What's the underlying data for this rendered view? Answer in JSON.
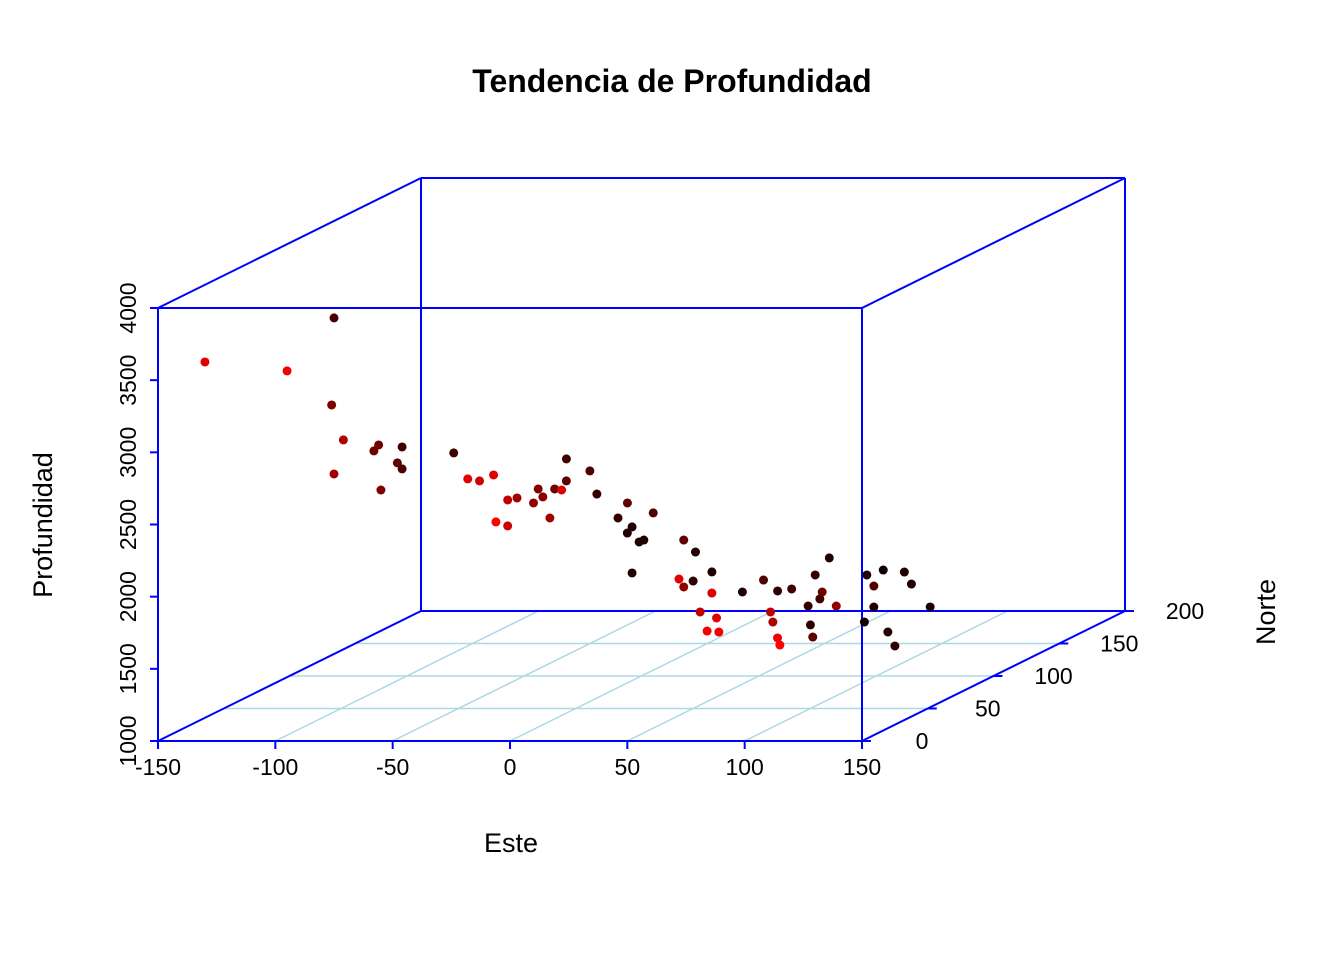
{
  "chart_data": {
    "type": "scatter3d",
    "title": "Tendencia de Profundidad",
    "xlabel": "Este",
    "ylabel": "Norte",
    "zlabel": "Profundidad",
    "xlim": [
      -150,
      150
    ],
    "xticks": [
      -150,
      -100,
      -50,
      0,
      50,
      100,
      150
    ],
    "ylim": [
      0,
      200
    ],
    "yticks": [
      0,
      50,
      100,
      150,
      200
    ],
    "zlim": [
      1000,
      4000
    ],
    "zticks": [
      1000,
      1500,
      2000,
      2500,
      3000,
      3500,
      4000
    ],
    "box_color": "#0000ff",
    "grid": true,
    "grid_color": "#add8e6",
    "x": [
      -130,
      -95,
      -103,
      -76,
      -71,
      -75,
      -84,
      -58,
      -74,
      -48,
      -74,
      -55,
      -52,
      -18,
      -41,
      -7,
      -6,
      -29,
      3,
      -29,
      -16,
      14,
      -18,
      -9,
      17,
      22,
      -32,
      -4,
      -22,
      9,
      18,
      -6,
      24,
      50,
      27,
      1,
      5,
      18,
      23,
      24,
      44,
      18,
      22,
      30,
      58,
      53,
      84,
      60,
      89,
      43,
      52,
      83,
      58,
      64,
      84,
      114,
      115,
      71,
      100,
      101,
      46,
      77,
      52,
      76,
      83,
      123,
      68,
      71,
      75,
      99,
      133,
      136,
      84,
      87,
      95
    ],
    "y": [
      0,
      0,
      50,
      0,
      0,
      0,
      50,
      0,
      50,
      0,
      50,
      0,
      50,
      0,
      50,
      0,
      0,
      50,
      0,
      50,
      50,
      0,
      50,
      50,
      0,
      0,
      100,
      50,
      100,
      50,
      50,
      100,
      50,
      0,
      50,
      100,
      100,
      100,
      100,
      50,
      50,
      100,
      100,
      100,
      50,
      50,
      0,
      50,
      0,
      100,
      100,
      50,
      100,
      100,
      50,
      0,
      0,
      100,
      50,
      50,
      150,
      100,
      150,
      100,
      100,
      50,
      150,
      150,
      150,
      100,
      50,
      50,
      150,
      150,
      150
    ],
    "z": [
      3626,
      3564,
      3706,
      3328,
      3086,
      2850,
      2826,
      3010,
      2812,
      2927,
      2660,
      2739,
      2771,
      2816,
      2577,
      2843,
      2518,
      2445,
      2684,
      2265,
      2521,
      2691,
      2424,
      2521,
      2545,
      2739,
      2504,
      2577,
      2421,
      2486,
      2320,
      2199,
      2258,
      2441,
      2154,
      1942,
      2130,
      1942,
      1859,
      1939,
      1897,
      1617,
      1658,
      1721,
      1800,
      1669,
      1762,
      1627,
      1755,
      1582,
      1665,
      1669,
      1589,
      1603,
      1599,
      1714,
      1665,
      1485,
      1579,
      1495,
      1475,
      1582,
      1593,
      1534,
      1485,
      1599,
      1475,
      1398,
      1509,
      1478,
      1530,
      1433,
      1495,
      1412,
      1253
    ],
    "colors": [
      "#e00000",
      "#f00000",
      "#4a0000",
      "#800000",
      "#b00000",
      "#a00000",
      "#700000",
      "#700000",
      "#400000",
      "#600000",
      "#500000",
      "#800000",
      "#400000",
      "#e00000",
      "#d00000",
      "#e00000",
      "#ff0000",
      "#c00000",
      "#a00000",
      "#d00000",
      "#800000",
      "#900000",
      "#900000",
      "#700000",
      "#a00000",
      "#e00000",
      "#400000",
      "#600000",
      "#500000",
      "#300000",
      "#300000",
      "#600000",
      "#200000",
      "#200000",
      "#200000",
      "#200000",
      "#500000",
      "#600000",
      "#200000",
      "#200000",
      "#e00000",
      "#900000",
      "#300000",
      "#200000",
      "#e00000",
      "#c00000",
      "#f00000",
      "#e00000",
      "#f00000",
      "#200000",
      "#500000",
      "#c00000",
      "#300000",
      "#400000",
      "#b00000",
      "#f00000",
      "#ff0000",
      "#300000",
      "#300000",
      "#600000",
      "#300000",
      "#700000",
      "#200000",
      "#400000",
      "#900000",
      "#100000",
      "#200000",
      "#500000",
      "#100000",
      "#200000",
      "#200000",
      "#300000",
      "#200000",
      "#200000",
      "#200000"
    ]
  }
}
